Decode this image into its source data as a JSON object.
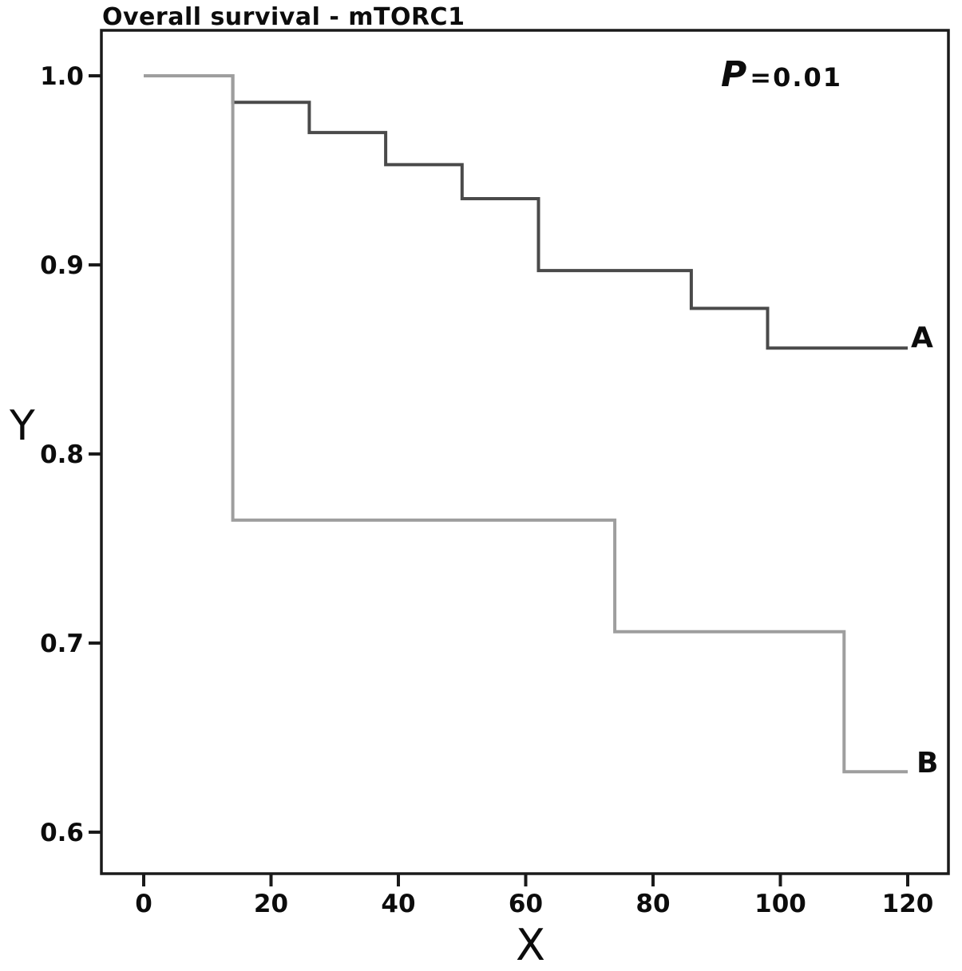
{
  "title": "Overall survival - mTORC1",
  "annotation": {
    "symbol": "P",
    "rest": "=0.01",
    "full": "P=0.01"
  },
  "chart_data": {
    "type": "line",
    "subtype": "kaplan-meier-step",
    "title": "Overall survival - mTORC1",
    "xlabel": "X",
    "ylabel": "Y",
    "xlim": [
      0,
      120
    ],
    "ylim": [
      0.57,
      1.02
    ],
    "x_ticks": [
      0,
      20,
      40,
      60,
      80,
      100,
      120
    ],
    "x_tick_labels": [
      "0",
      "20",
      "40",
      "60",
      "80",
      "100",
      "120"
    ],
    "y_ticks": [
      1.0,
      0.9,
      0.8,
      0.7,
      0.6
    ],
    "y_tick_labels": [
      "1.0",
      "0.9",
      "0.8",
      "0.7",
      "0.6"
    ],
    "grid": false,
    "legend_position": "curve-end-labels",
    "annotation_text": "P=0.01",
    "frame_color": "#1a1a1a",
    "series": [
      {
        "name": "A",
        "color": "#4a4a4a",
        "line_width": 4,
        "steps": [
          [
            0,
            1.0
          ],
          [
            14,
            1.0
          ],
          [
            14,
            0.986
          ],
          [
            26,
            0.986
          ],
          [
            26,
            0.97
          ],
          [
            38,
            0.97
          ],
          [
            38,
            0.953
          ],
          [
            50,
            0.953
          ],
          [
            50,
            0.935
          ],
          [
            62,
            0.935
          ],
          [
            62,
            0.897
          ],
          [
            86,
            0.897
          ],
          [
            86,
            0.877
          ],
          [
            98,
            0.877
          ],
          [
            98,
            0.856
          ],
          [
            120,
            0.856
          ]
        ]
      },
      {
        "name": "B",
        "color": "#9e9e9e",
        "line_width": 4,
        "steps": [
          [
            0,
            1.0
          ],
          [
            14,
            1.0
          ],
          [
            14,
            0.765
          ],
          [
            74,
            0.765
          ],
          [
            74,
            0.706
          ],
          [
            110,
            0.706
          ],
          [
            110,
            0.632
          ],
          [
            120,
            0.632
          ]
        ]
      }
    ]
  }
}
